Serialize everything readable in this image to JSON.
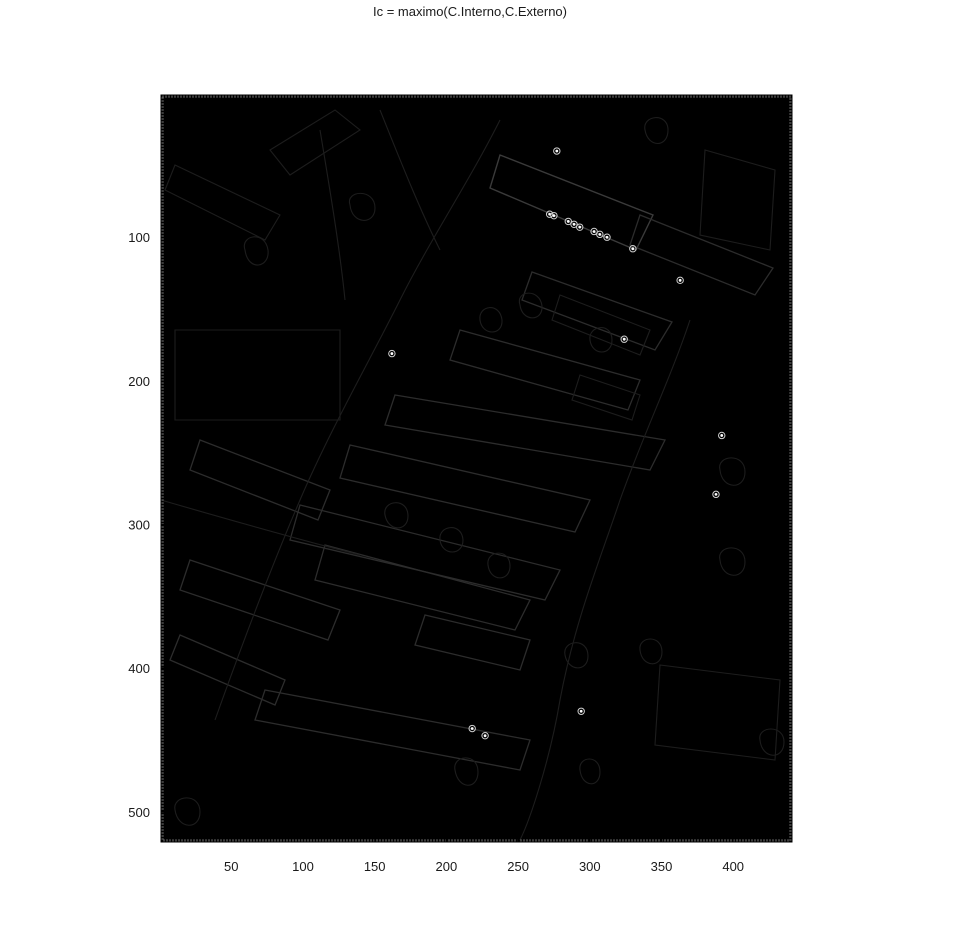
{
  "chart_data": {
    "type": "heatmap",
    "title": "Ic = maximo(C.Interno,C.Externo)",
    "xlabel": "",
    "ylabel": "",
    "xlim": [
      1,
      441
    ],
    "ylim": [
      521,
      1
    ],
    "y_axis_reversed": true,
    "x_ticks": [
      50,
      100,
      150,
      200,
      250,
      300,
      350,
      400
    ],
    "y_ticks": [
      100,
      200,
      300,
      400,
      500
    ],
    "colormap": "gray",
    "background_color": "#000000",
    "bright_points": [
      {
        "x": 277,
        "y": 40
      },
      {
        "x": 272,
        "y": 84
      },
      {
        "x": 275,
        "y": 85
      },
      {
        "x": 285,
        "y": 89
      },
      {
        "x": 289,
        "y": 91
      },
      {
        "x": 293,
        "y": 93
      },
      {
        "x": 303,
        "y": 96
      },
      {
        "x": 307,
        "y": 98
      },
      {
        "x": 312,
        "y": 100
      },
      {
        "x": 330,
        "y": 108
      },
      {
        "x": 363,
        "y": 130
      },
      {
        "x": 324,
        "y": 171
      },
      {
        "x": 162,
        "y": 181
      },
      {
        "x": 392,
        "y": 238
      },
      {
        "x": 388,
        "y": 279
      },
      {
        "x": 294,
        "y": 430
      },
      {
        "x": 218,
        "y": 442
      },
      {
        "x": 227,
        "y": 447
      }
    ]
  }
}
